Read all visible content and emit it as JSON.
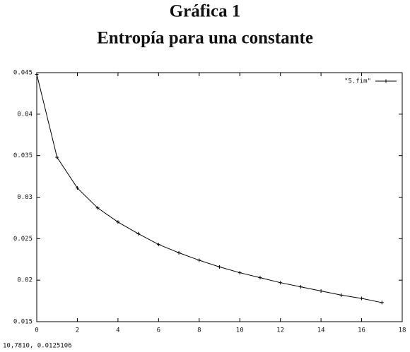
{
  "chart_data": {
    "type": "line",
    "title": "Gráfica 1",
    "subtitle": "Entropía para una constante",
    "x": [
      0,
      1,
      2,
      3,
      4,
      5,
      6,
      7,
      8,
      9,
      10,
      11,
      12,
      13,
      14,
      15,
      16,
      17
    ],
    "series": [
      {
        "name": "\"5.fim\"",
        "color": "#000000",
        "values": [
          0.0448,
          0.0348,
          0.0311,
          0.0287,
          0.027,
          0.0256,
          0.0243,
          0.0233,
          0.0224,
          0.0216,
          0.0209,
          0.0203,
          0.0197,
          0.0192,
          0.0187,
          0.0182,
          0.0178,
          0.0173
        ]
      }
    ],
    "xlim": [
      0,
      18
    ],
    "xticks": [
      0,
      2,
      4,
      6,
      8,
      10,
      12,
      14,
      16,
      18
    ],
    "ylim": [
      0.015,
      0.045
    ],
    "yticks": [
      0.015,
      0.02,
      0.025,
      0.03,
      0.035,
      0.04,
      0.045
    ],
    "legend": "top-right",
    "status_text": "10,7810,  0.0125106"
  }
}
